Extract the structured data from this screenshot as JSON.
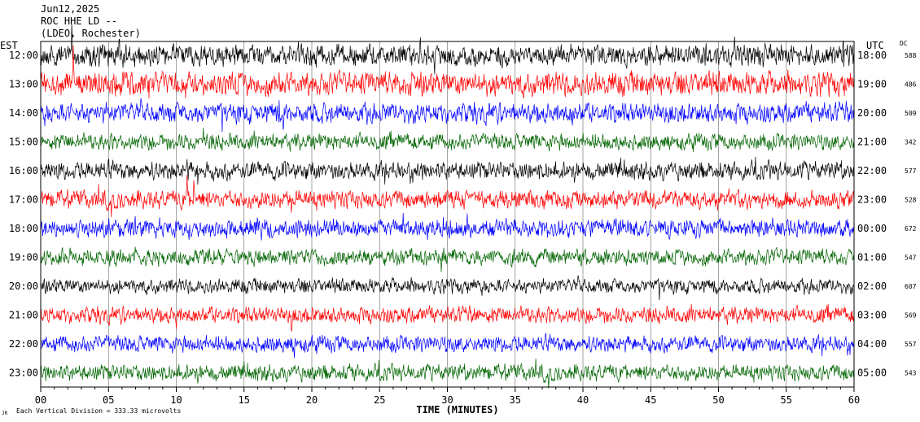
{
  "header": {
    "date": "Jun12,2025",
    "station": "ROC HHE LD --",
    "network": "(LDEO, Rochester)"
  },
  "labels": {
    "left_tz": "EST",
    "right_tz": "UTC",
    "dc": "DC",
    "xlabel": "TIME (MINUTES)",
    "footer": "Each Vertical Division =  333.33 microvolts",
    "footer_mark": "JR"
  },
  "colors": {
    "trace_cycle": [
      "#000000",
      "#ff0000",
      "#0000ff",
      "#006400"
    ],
    "gridline": "#666666"
  },
  "chart_data": {
    "type": "line",
    "title": "ROC HHE LD --",
    "xlabel": "TIME (MINUTES)",
    "xlim": [
      0,
      60
    ],
    "x_ticks": [
      "00",
      "05",
      "10",
      "15",
      "20",
      "25",
      "30",
      "35",
      "40",
      "45",
      "50",
      "55",
      "60"
    ],
    "grid": true,
    "rows": [
      {
        "local": "12:00",
        "utc": "18:00",
        "dc": "588",
        "color": "#000000",
        "amp": 12,
        "spikes": [
          [
            2.3,
            -55
          ],
          [
            5.8,
            -25
          ],
          [
            28.0,
            -20
          ],
          [
            51.2,
            -20
          ],
          [
            59.2,
            -18
          ]
        ]
      },
      {
        "local": "13:00",
        "utc": "19:00",
        "dc": "486",
        "color": "#ff0000",
        "amp": 13,
        "spikes": [
          [
            1.5,
            25
          ],
          [
            2.4,
            -55
          ],
          [
            5.5,
            18
          ],
          [
            17.6,
            -18
          ],
          [
            27.3,
            22
          ]
        ]
      },
      {
        "local": "14:00",
        "utc": "20:00",
        "dc": "509",
        "color": "#0000ff",
        "amp": 11,
        "spikes": [
          [
            17.6,
            -25
          ],
          [
            17.9,
            22
          ],
          [
            39.2,
            18
          ]
        ]
      },
      {
        "local": "15:00",
        "utc": "21:00",
        "dc": "342",
        "color": "#006400",
        "amp": 9,
        "spikes": [
          [
            12.0,
            -18
          ]
        ]
      },
      {
        "local": "16:00",
        "utc": "22:00",
        "dc": "577",
        "color": "#000000",
        "amp": 10,
        "spikes": [
          [
            10.8,
            -15
          ],
          [
            11.6,
            18
          ]
        ]
      },
      {
        "local": "17:00",
        "utc": "23:00",
        "dc": "528",
        "color": "#ff0000",
        "amp": 10,
        "spikes": [
          [
            10.8,
            -22
          ],
          [
            11.3,
            -28
          ],
          [
            18.5,
            15
          ]
        ]
      },
      {
        "local": "18:00",
        "utc": "00:00",
        "dc": "672",
        "color": "#0000ff",
        "amp": 10,
        "spikes": [
          [
            16.0,
            -14
          ],
          [
            16.3,
            20
          ]
        ]
      },
      {
        "local": "19:00",
        "utc": "01:00",
        "dc": "547",
        "color": "#006400",
        "amp": 9,
        "spikes": [
          [
            3.8,
            -15
          ]
        ]
      },
      {
        "local": "20:00",
        "utc": "02:00",
        "dc": "607",
        "color": "#000000",
        "amp": 8,
        "spikes": []
      },
      {
        "local": "21:00",
        "utc": "03:00",
        "dc": "569",
        "color": "#ff0000",
        "amp": 9,
        "spikes": [
          [
            18.5,
            20
          ],
          [
            10.0,
            12
          ]
        ]
      },
      {
        "local": "22:00",
        "utc": "04:00",
        "dc": "557",
        "color": "#0000ff",
        "amp": 9,
        "spikes": [
          [
            18.7,
            16
          ]
        ]
      },
      {
        "local": "23:00",
        "utc": "05:00",
        "dc": "543",
        "color": "#006400",
        "amp": 9,
        "spikes": [
          [
            22.8,
            -14
          ]
        ]
      }
    ]
  }
}
